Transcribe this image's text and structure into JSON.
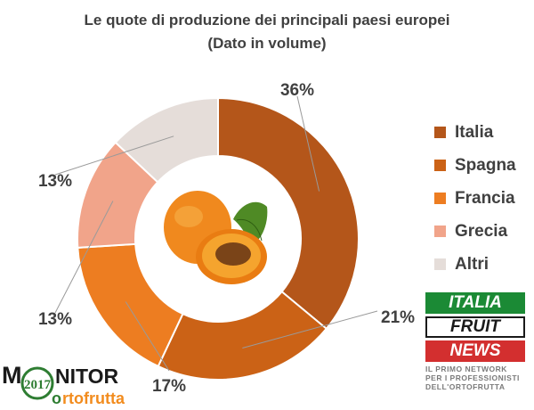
{
  "title": "Le quote di produzione dei principali paesi europei",
  "subtitle": "(Dato in volume)",
  "chart_data": {
    "type": "pie",
    "style": "donut",
    "title": "Le quote di produzione dei principali paesi europei",
    "subtitle": "(Dato in volume)",
    "categories": [
      "Italia",
      "Spagna",
      "Francia",
      "Grecia",
      "Altri"
    ],
    "values": [
      36,
      21,
      17,
      13,
      13
    ],
    "value_labels": [
      "36%",
      "21%",
      "17%",
      "13%",
      "13%"
    ],
    "unit": "%",
    "colors": [
      "#B4561A",
      "#CB6216",
      "#ED7D21",
      "#F1A48A",
      "#E5DDD9"
    ],
    "legend_position": "right"
  },
  "legend": [
    {
      "label": "Italia",
      "color": "#B4561A"
    },
    {
      "label": "Spagna",
      "color": "#CB6216"
    },
    {
      "label": "Francia",
      "color": "#ED7D21"
    },
    {
      "label": "Grecia",
      "color": "#F1A48A"
    },
    {
      "label": "Altri",
      "color": "#E5DDD9"
    }
  ],
  "logo_monitor": {
    "year": "2017",
    "word1_m": "M",
    "word1_rest": "NITOR",
    "word2_o": "o",
    "word2_rest": "rtofrutta"
  },
  "logo_ifn": {
    "line1": "ITALIA",
    "line2": "FRUIT",
    "line3": "NEWS",
    "tag1": "IL PRIMO NETWORK",
    "tag2": "PER I PROFESSIONISTI",
    "tag3": "DELL'ORTOFRUTTA"
  }
}
